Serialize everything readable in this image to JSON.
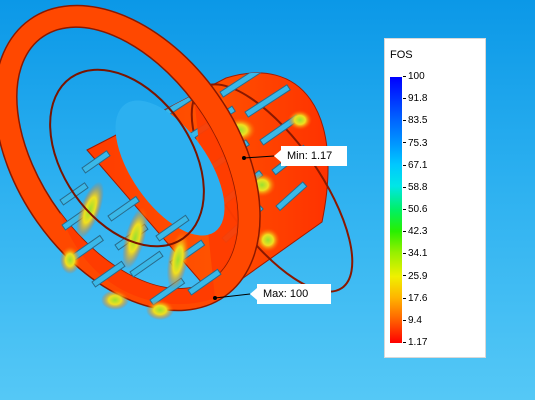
{
  "annotations": {
    "min_label": "Min: 1.17",
    "max_label": "Max: 100"
  },
  "legend": {
    "title": "FOS",
    "ticks": [
      "100",
      "91.8",
      "83.5",
      "75.3",
      "67.1",
      "58.8",
      "50.6",
      "42.3",
      "34.1",
      "25.9",
      "17.6",
      "9.4",
      "1.17"
    ],
    "colors": [
      "#0000ff",
      "#0064ff",
      "#00c8ff",
      "#00f064",
      "#f0f000",
      "#ff6400",
      "#ff0000"
    ]
  }
}
